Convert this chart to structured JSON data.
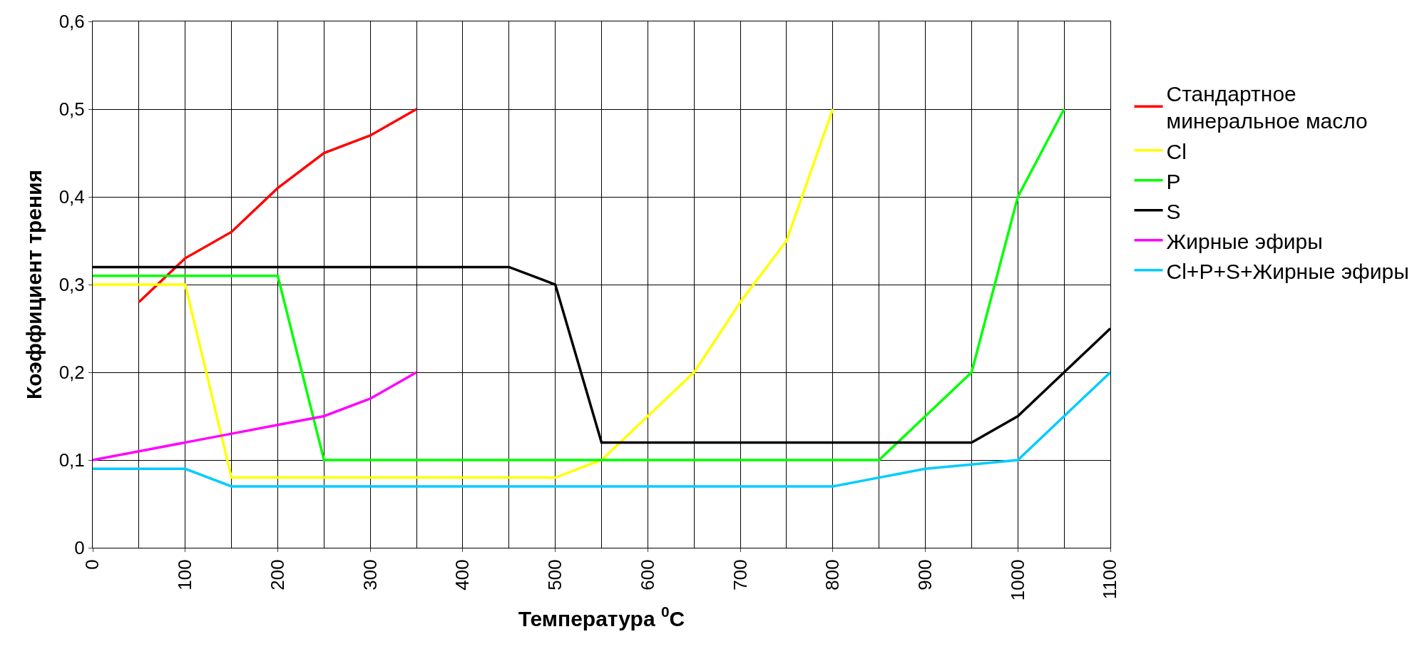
{
  "chart_data": {
    "type": "line",
    "xlabel": "Температура $^{0}$C",
    "ylabel": "Коэффициент трения",
    "xlim": [
      0,
      1100
    ],
    "xticks": [
      0,
      100,
      200,
      300,
      400,
      500,
      600,
      700,
      800,
      900,
      1000,
      1100
    ],
    "ylim": [
      0,
      0.6
    ],
    "yticks": [
      {
        "value": 0,
        "label": "0"
      },
      {
        "value": 0.1,
        "label": "0,1"
      },
      {
        "value": 0.2,
        "label": "0,2"
      },
      {
        "value": 0.3,
        "label": "0,3"
      },
      {
        "value": 0.4,
        "label": "0,4"
      },
      {
        "value": 0.5,
        "label": "0,5"
      },
      {
        "value": 0.6,
        "label": "0,6"
      }
    ],
    "grid": true,
    "legend": "right",
    "marker": "none",
    "line_style": "solid",
    "series": [
      {
        "name": "Стандартное минеральное масло",
        "color": "#ff0000",
        "x": [
          50,
          100,
          150,
          200,
          250,
          300,
          350
        ],
        "values": [
          0.28,
          0.33,
          0.36,
          0.41,
          0.45,
          0.47,
          0.5
        ]
      },
      {
        "name": "Cl",
        "color": "#ffff00",
        "x": [
          0,
          100,
          150,
          500,
          550,
          600,
          650,
          700,
          750,
          800
        ],
        "values": [
          0.3,
          0.3,
          0.08,
          0.08,
          0.1,
          0.15,
          0.2,
          0.28,
          0.35,
          0.5
        ]
      },
      {
        "name": "P",
        "color": "#00ff00",
        "x": [
          0,
          200,
          250,
          850,
          900,
          950,
          1000,
          1050
        ],
        "values": [
          0.31,
          0.31,
          0.1,
          0.1,
          0.15,
          0.2,
          0.4,
          0.5
        ]
      },
      {
        "name": "S",
        "color": "#000000",
        "x": [
          0,
          450,
          500,
          550,
          950,
          1000,
          1050,
          1100
        ],
        "values": [
          0.32,
          0.32,
          0.3,
          0.12,
          0.12,
          0.15,
          0.2,
          0.25
        ]
      },
      {
        "name": "Жирные эфиры",
        "color": "#ff00ff",
        "x": [
          0,
          50,
          100,
          150,
          200,
          250,
          300,
          350
        ],
        "values": [
          0.1,
          0.11,
          0.12,
          0.13,
          0.14,
          0.15,
          0.17,
          0.2
        ]
      },
      {
        "name": "Cl+P+S+Жирные эфиры",
        "color": "#00ccff",
        "x": [
          0,
          100,
          150,
          800,
          850,
          900,
          950,
          1000,
          1050,
          1100
        ],
        "values": [
          0.09,
          0.09,
          0.07,
          0.07,
          0.08,
          0.09,
          0.095,
          0.1,
          0.15,
          0.2
        ]
      }
    ]
  }
}
